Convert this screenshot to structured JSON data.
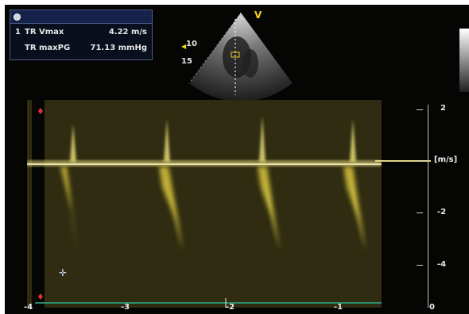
{
  "measurements": {
    "header_icon": "circle-icon",
    "rows": [
      {
        "index": "1",
        "label": "TR Vmax",
        "value": "4.22 m/s"
      },
      {
        "index": "",
        "label": "TR maxPG",
        "value": "71.13 mmHg"
      }
    ]
  },
  "probe_marker": "V",
  "depth_labels": [
    "10",
    "15"
  ],
  "velocity_scale": {
    "labels": [
      "2",
      "-2",
      "-4"
    ],
    "unit": "[m/s]"
  },
  "time_scale": {
    "labels": [
      "-4",
      "-3",
      "-2",
      "-1",
      "0"
    ]
  },
  "colors": {
    "doppler": "#e7d64a",
    "baseline": "#d8cf7a",
    "ecg_trace": "#2fae8a"
  }
}
